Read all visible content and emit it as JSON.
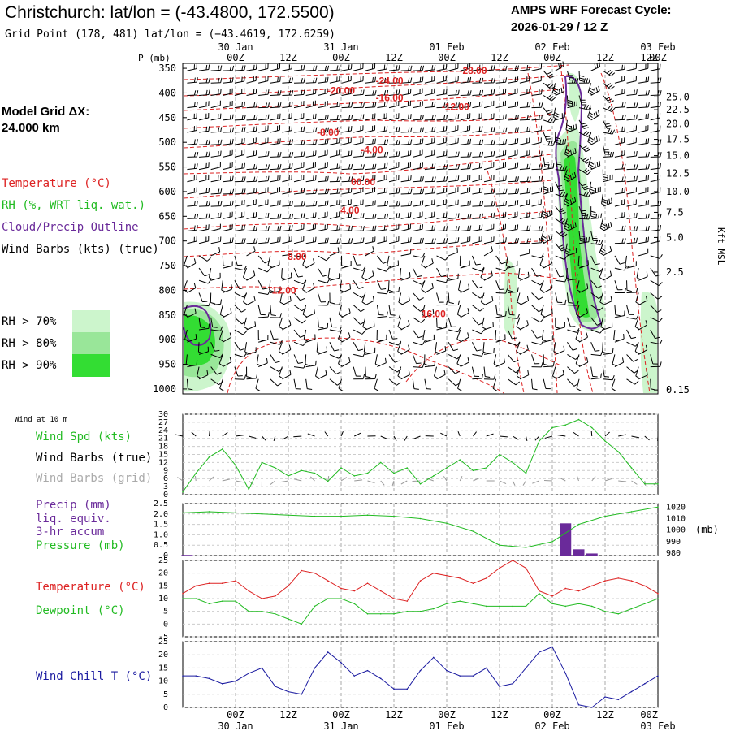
{
  "header": {
    "title": "Christchurch:  lat/lon = (-43.4800, 172.5500)",
    "grid_point": "Grid Point (178, 481) lat/lon = (−43.4619, 172.6259)",
    "cycle_line1": "AMPS WRF Forecast Cycle:",
    "cycle_line2": "2026-01-29 / 12  Z",
    "model_grid_line1": "Model Grid ΔX:",
    "model_grid_line2": " 24.000 km"
  },
  "time_axis": {
    "labels": [
      "00Z",
      "12Z",
      "00Z",
      "12Z",
      "00Z",
      "12Z",
      "00Z",
      "12Z",
      "00Z",
      "12Z"
    ],
    "dates": [
      "30 Jan",
      "31 Jan",
      "01 Feb",
      "02 Feb",
      "03 Feb"
    ]
  },
  "legend_main": {
    "temperature": "Temperature (°C)",
    "rh": "RH (%, WRT liq. wat.)",
    "cloud": "Cloud/Precip Outline",
    "wind": "Wind Barbs (kts) (true)",
    "rh70": "RH > 70%",
    "rh80": "RH > 80%",
    "rh90": "RH > 90%"
  },
  "colors": {
    "temp": "#dd2222",
    "green": "#22bb22",
    "purple": "#6a2a9a",
    "blue": "#1a1aa0",
    "rh70": "#ccf5cc",
    "rh80": "#99e699",
    "rh90": "#33dd33",
    "grid": "#aaaaaa"
  },
  "chart_data": [
    {
      "id": "sounding",
      "type": "heatmap",
      "ylabel_left": "P (mb)",
      "ylabel_right": "Kft MSL",
      "pressure_levels": [
        "350",
        "400",
        "450",
        "500",
        "550",
        "600",
        "650",
        "700",
        "750",
        "800",
        "850",
        "900",
        "950",
        "1000"
      ],
      "kft_ticks": [
        {
          "label": "25.0",
          "p": 408
        },
        {
          "label": "22.5",
          "p": 434
        },
        {
          "label": "20.0",
          "p": 463
        },
        {
          "label": "17.5",
          "p": 494
        },
        {
          "label": "15.0",
          "p": 527
        },
        {
          "label": "12.5",
          "p": 563
        },
        {
          "label": "10.0",
          "p": 600
        },
        {
          "label": "7.5",
          "p": 642
        },
        {
          "label": "5.0",
          "p": 693
        },
        {
          "label": "2.5",
          "p": 763
        },
        {
          "label": "0.15",
          "p": 1002
        }
      ],
      "temp_labels": [
        {
          "text": "-28.00",
          "t": 66,
          "p": 355
        },
        {
          "text": "-24.00",
          "t": 47,
          "p": 375
        },
        {
          "text": "-20.00",
          "t": 36,
          "p": 395
        },
        {
          "text": "-16.00",
          "t": 47,
          "p": 410
        },
        {
          "text": "-12.00",
          "t": 62,
          "p": 428
        },
        {
          "text": "-8.00",
          "t": 33,
          "p": 480
        },
        {
          "text": "-4.00",
          "t": 43,
          "p": 515
        },
        {
          "text": "00.00",
          "t": 41,
          "p": 580
        },
        {
          "text": "4.00",
          "t": 38,
          "p": 638
        },
        {
          "text": "8.00",
          "t": 26,
          "p": 732
        },
        {
          "text": "12.00",
          "t": 23,
          "p": 800
        },
        {
          "text": "16.00",
          "t": 57,
          "p": 848
        }
      ]
    },
    {
      "id": "wind10m",
      "type": "line",
      "title": "Wind at 10 m",
      "ylabel": "Wind Spd (kts)",
      "label_barbs_true": "Wind Barbs (true)",
      "label_barbs_grid": "Wind Barbs (grid)",
      "yticks": [
        "0",
        "3",
        "6",
        "9",
        "12",
        "15",
        "18",
        "21",
        "24",
        "27",
        "30"
      ],
      "ylim": [
        0,
        30
      ],
      "x": [
        0,
        3,
        6,
        9,
        12,
        15,
        18,
        21,
        24,
        27,
        30,
        33,
        36,
        39,
        42,
        45,
        48,
        51,
        54,
        57,
        60,
        63,
        66,
        69,
        72,
        75,
        78,
        81,
        84,
        87,
        90,
        93,
        96,
        99,
        102,
        105,
        108
      ],
      "values": [
        1,
        8,
        14,
        17,
        11,
        2,
        12,
        10,
        7,
        9,
        8,
        5,
        10,
        7,
        8,
        12,
        8,
        10,
        4,
        7,
        10,
        13,
        9,
        10,
        15,
        12,
        8,
        20,
        25,
        26,
        28,
        25,
        20,
        16,
        10,
        4,
        4
      ]
    },
    {
      "id": "precip_pressure",
      "type": "bar",
      "ylabel_precip": "Precip (mm)",
      "precip_line2": "liq. equiv.",
      "precip_line3": "3-hr accum",
      "ylabel_pressure": "Pressure (mb)",
      "pressure_unit": "(mb)",
      "precip_ticks": [
        "0",
        "0.5",
        "1.0",
        "1.5",
        "2.0",
        "2.5"
      ],
      "pressure_ticks": [
        "980",
        "990",
        "1000",
        "1010",
        "1020"
      ],
      "precip_ylim": [
        0,
        2.5
      ],
      "pressure_ylim": [
        978,
        1023
      ],
      "pressure_x": [
        0,
        6,
        12,
        18,
        24,
        30,
        36,
        42,
        48,
        54,
        60,
        66,
        72,
        78,
        84,
        90,
        96,
        102,
        108
      ],
      "pressure_values": [
        1015,
        1016,
        1015,
        1014,
        1013,
        1012,
        1012,
        1013,
        1012,
        1010,
        1006,
        999,
        987,
        985,
        990,
        1005,
        1012,
        1016,
        1020
      ],
      "precip": [
        {
          "t": 1,
          "v": 0.03
        },
        {
          "t": 87,
          "v": 1.55
        },
        {
          "t": 90,
          "v": 0.3
        },
        {
          "t": 93,
          "v": 0.1
        }
      ]
    },
    {
      "id": "temp_dew",
      "type": "line",
      "ylabel_temp": "Temperature (°C)",
      "ylabel_dew": "Dewpoint (°C)",
      "yticks": [
        "-5",
        "0",
        "5",
        "10",
        "15",
        "20",
        "25"
      ],
      "ylim": [
        -5,
        25
      ],
      "x": [
        0,
        3,
        6,
        9,
        12,
        15,
        18,
        21,
        24,
        27,
        30,
        33,
        36,
        39,
        42,
        45,
        48,
        51,
        54,
        57,
        60,
        63,
        66,
        69,
        72,
        75,
        78,
        81,
        84,
        87,
        90,
        93,
        96,
        99,
        102,
        105,
        108
      ],
      "temperature": [
        12,
        15,
        16,
        16,
        17,
        13,
        10,
        11,
        15,
        21,
        20,
        17,
        14,
        13,
        16,
        13,
        10,
        9,
        17,
        20,
        19,
        18,
        16,
        18,
        22,
        25,
        22,
        13,
        11,
        14,
        13,
        15,
        17,
        18,
        17,
        15,
        12
      ],
      "dewpoint": [
        10,
        10,
        8,
        9,
        9,
        5,
        5,
        4,
        2,
        0,
        7,
        10,
        10,
        8,
        4,
        4,
        4,
        5,
        5,
        6,
        8,
        9,
        8,
        7,
        7,
        7,
        7,
        12,
        8,
        7,
        8,
        7,
        5,
        4,
        6,
        8,
        10
      ]
    },
    {
      "id": "windchill",
      "type": "line",
      "ylabel": "Wind Chill T (°C)",
      "yticks": [
        "0",
        "5",
        "10",
        "15",
        "20",
        "25"
      ],
      "ylim": [
        0,
        25
      ],
      "x": [
        0,
        3,
        6,
        9,
        12,
        15,
        18,
        21,
        24,
        27,
        30,
        33,
        36,
        39,
        42,
        45,
        48,
        51,
        54,
        57,
        60,
        63,
        66,
        69,
        72,
        75,
        78,
        81,
        84,
        87,
        90,
        93,
        96,
        99,
        102,
        105,
        108
      ],
      "values": [
        12,
        12,
        11,
        9,
        10,
        13,
        15,
        8,
        6,
        5,
        15,
        21,
        17,
        12,
        14,
        11,
        7,
        7,
        14,
        19,
        14,
        12,
        12,
        15,
        8,
        9,
        15,
        21,
        23,
        13,
        1,
        0,
        4,
        3,
        6,
        9,
        12
      ]
    }
  ]
}
